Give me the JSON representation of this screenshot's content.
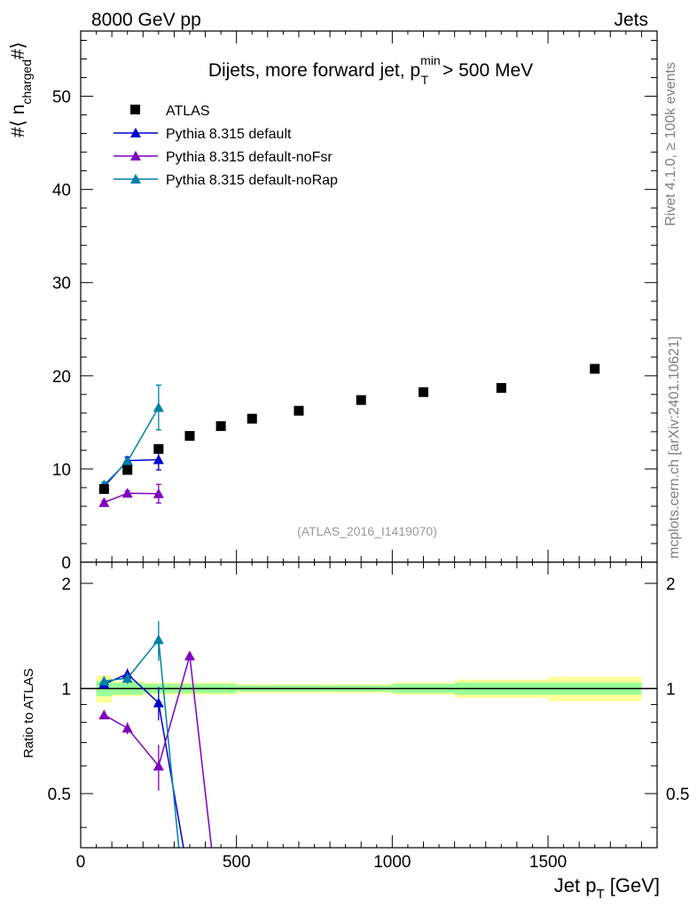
{
  "header": {
    "left": "8000 GeV pp",
    "right": "Jets"
  },
  "side_labels": {
    "rivet": "Rivet 4.1.0, ≥ 100k events",
    "mcplots": "mcplots.cern.ch [arXiv:2401.10621]"
  },
  "colors": {
    "atlas": "#000000",
    "default": "#0000cc",
    "noFsr": "#7f00bf",
    "noRap": "#007fa6",
    "band_inner": "#99ff99",
    "band_outer": "#ffff99"
  },
  "chart_data": {
    "type": "scatter",
    "title": "Dijets, more forward jet, p_T^min > 500 MeV",
    "title_parts": {
      "prefix": "Dijets, more forward jet, p",
      "sup": "min",
      "sub": "T",
      "suffix": " > 500 MeV"
    },
    "annotation": "(ATLAS_2016_I1419070)",
    "ylabel": {
      "prefix": "#⟨ n",
      "sub": "charged",
      "suffix": "#⟩"
    },
    "ratio_ylabel": "Ratio to ATLAS",
    "xlabel": {
      "prefix": "Jet p",
      "sub": "T",
      "suffix": " [GeV]"
    },
    "xlim": [
      0,
      1850
    ],
    "ylim": [
      0,
      57
    ],
    "ratio_ylim": [
      0.35,
      2.3
    ],
    "x_ticks": [
      "0",
      "500",
      "1000",
      "1500"
    ],
    "y_ticks": [
      "0",
      "10",
      "20",
      "30",
      "40",
      "50"
    ],
    "ratio_ticks": [
      "0.5",
      "1",
      "2"
    ],
    "legend": [
      "ATLAS",
      "Pythia 8.315 default",
      "Pythia 8.315 default-noFsr",
      "Pythia 8.315 default-noRap"
    ],
    "data": {
      "x": [
        75,
        150,
        250,
        350,
        450,
        550,
        700,
        900,
        1100,
        1350,
        1650
      ],
      "xlow": [
        50,
        100,
        200,
        300,
        400,
        500,
        600,
        800,
        1000,
        1200,
        1500
      ],
      "xhigh": [
        100,
        200,
        300,
        400,
        500,
        600,
        800,
        1000,
        1200,
        1500,
        1800
      ],
      "y": [
        7.85,
        9.9,
        12.15,
        13.55,
        14.6,
        15.4,
        16.25,
        17.4,
        18.25,
        18.7,
        20.75
      ],
      "rel_err_stat": [
        0.05,
        0.04,
        0.03,
        0.03,
        0.03,
        0.02,
        0.02,
        0.02,
        0.03,
        0.04,
        0.04
      ],
      "rel_err_tot": [
        0.09,
        0.05,
        0.04,
        0.04,
        0.04,
        0.03,
        0.03,
        0.03,
        0.04,
        0.06,
        0.08
      ]
    },
    "series": [
      {
        "name": "Pythia 8.315 default",
        "x": [
          75,
          150,
          250
        ],
        "y": [
          8.1,
          10.9,
          11.0
        ],
        "yerr": [
          0.3,
          0.4,
          1.1
        ],
        "ratio": [
          1.03,
          1.1,
          0.91
        ],
        "ratio_err": [
          0.03,
          0.04,
          0.1
        ],
        "ratio_tail": [
          [
            330,
            0.35
          ]
        ]
      },
      {
        "name": "Pythia 8.315 default-noFsr",
        "x": [
          75,
          150,
          250
        ],
        "y": [
          6.4,
          7.4,
          7.35
        ],
        "yerr": [
          0.2,
          0.25,
          1.0
        ],
        "ratio": [
          0.84,
          0.77,
          0.6
        ],
        "ratio_err": [
          0.02,
          0.03,
          0.09
        ],
        "ratio_tail": [
          [
            350,
            1.24
          ],
          [
            420,
            0.35
          ]
        ]
      },
      {
        "name": "Pythia 8.315 default-noRap",
        "x": [
          75,
          150,
          250
        ],
        "y": [
          8.3,
          10.8,
          16.6
        ],
        "yerr": [
          0.3,
          0.4,
          2.4
        ],
        "ratio": [
          1.05,
          1.07,
          1.38
        ],
        "ratio_err": [
          0.03,
          0.04,
          0.18
        ],
        "ratio_tail": [
          [
            315,
            0.35
          ]
        ]
      }
    ]
  }
}
